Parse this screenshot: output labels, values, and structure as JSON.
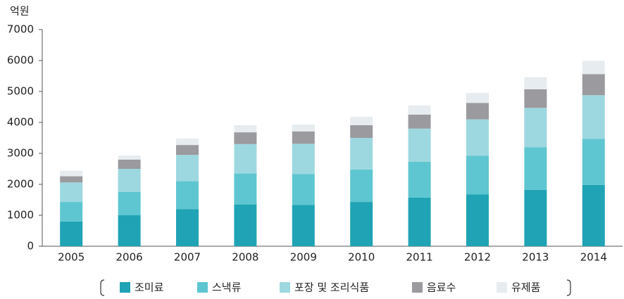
{
  "chart_data": {
    "type": "stacked_bar",
    "y_label": "억원",
    "categories": [
      "2005",
      "2006",
      "2007",
      "2008",
      "2009",
      "2010",
      "2011",
      "2012",
      "2013",
      "2014"
    ],
    "series": [
      {
        "name": "조미료",
        "color": "#1fa3b5",
        "values": [
          800,
          1000,
          1200,
          1350,
          1330,
          1430,
          1570,
          1670,
          1820,
          1980
        ]
      },
      {
        "name": "스낵류",
        "color": "#5ec6d0",
        "values": [
          630,
          750,
          900,
          1000,
          1000,
          1050,
          1160,
          1250,
          1380,
          1490
        ]
      },
      {
        "name": "포장 및 조리식품",
        "color": "#9dd8e0",
        "values": [
          630,
          750,
          850,
          950,
          980,
          1020,
          1070,
          1180,
          1270,
          1410
        ]
      },
      {
        "name": "음료수",
        "color": "#9b9a9e",
        "values": [
          200,
          300,
          320,
          380,
          400,
          410,
          450,
          530,
          600,
          680
        ]
      },
      {
        "name": "유제품",
        "color": "#e6ecef",
        "values": [
          180,
          130,
          210,
          230,
          220,
          270,
          300,
          320,
          390,
          430
        ]
      }
    ],
    "ylim": [
      0,
      7000
    ],
    "yticks": [
      0,
      1000,
      2000,
      3000,
      4000,
      5000,
      6000,
      7000
    ]
  }
}
